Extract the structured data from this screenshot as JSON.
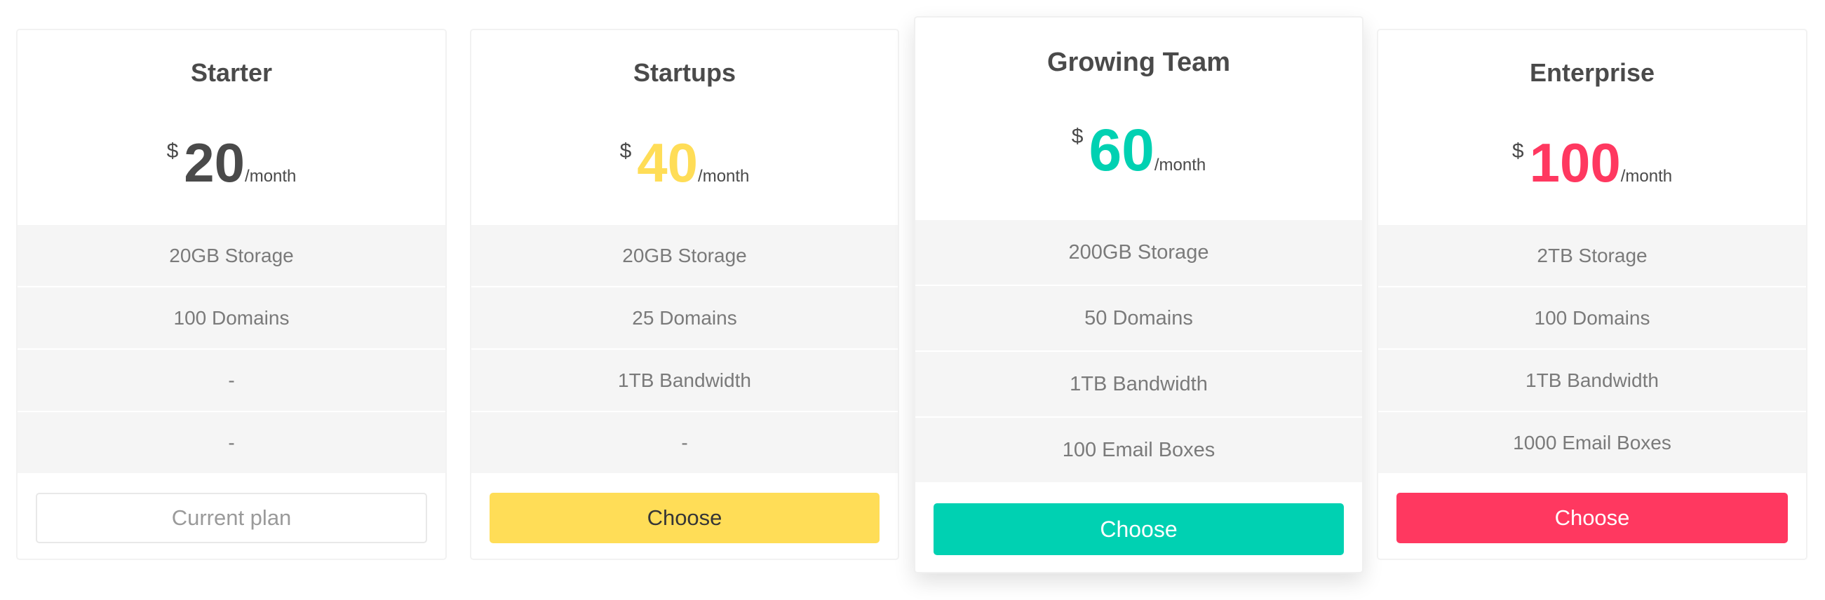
{
  "currency_symbol": "$",
  "period": "/month",
  "plans": [
    {
      "name": "Starter",
      "price": "20",
      "color": "#4a4a4a",
      "features": [
        "20GB Storage",
        "100 Domains",
        "-",
        "-"
      ],
      "button": "Current plan"
    },
    {
      "name": "Startups",
      "price": "40",
      "color": "#ffdd57",
      "features": [
        "20GB Storage",
        "25 Domains",
        "1TB Bandwidth",
        "-"
      ],
      "button": "Choose"
    },
    {
      "name": "Growing Team",
      "price": "60",
      "color": "#00d1b2",
      "features": [
        "200GB Storage",
        "50 Domains",
        "1TB Bandwidth",
        "100 Email Boxes"
      ],
      "button": "Choose",
      "highlighted": true
    },
    {
      "name": "Enterprise",
      "price": "100",
      "color": "#ff3860",
      "features": [
        "2TB Storage",
        "100 Domains",
        "1TB Bandwidth",
        "1000 Email Boxes"
      ],
      "button": "Choose"
    }
  ]
}
